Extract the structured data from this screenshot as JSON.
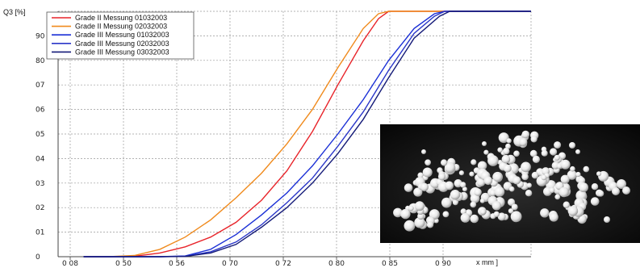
{
  "chart_data": {
    "type": "line",
    "ylabel": "Q3 [%]",
    "xlabel": "x mm ]",
    "ylim": [
      0,
      100
    ],
    "y_ticks": [
      "0",
      "10",
      "20",
      "30",
      "40",
      "50",
      "60",
      "70",
      "80",
      "90"
    ],
    "y_tick_labels": [
      "0",
      "01",
      "02",
      "03",
      "04",
      "05",
      "06",
      "07",
      "80",
      "90"
    ],
    "x_tick_labels": [
      "0 08",
      "0 50",
      "0 56",
      "0 70",
      "0 72",
      "0 80",
      "0 85",
      "0 90"
    ],
    "grid": true,
    "legend_position": "top-left",
    "series": [
      {
        "name": "Grade II Messung 01032003",
        "color": "#e8242a",
        "points": [
          [
            0.5,
            0
          ],
          [
            1.0,
            0
          ],
          [
            1.5,
            0.2
          ],
          [
            2.0,
            1.5
          ],
          [
            2.5,
            4
          ],
          [
            3.0,
            8
          ],
          [
            3.5,
            14
          ],
          [
            4.0,
            23
          ],
          [
            4.5,
            35
          ],
          [
            5.0,
            51
          ],
          [
            5.5,
            70
          ],
          [
            6.0,
            88
          ],
          [
            6.3,
            97
          ],
          [
            6.5,
            100
          ],
          [
            9.3,
            100
          ]
        ]
      },
      {
        "name": "Grade II Messung 02032003",
        "color": "#f08a1c",
        "points": [
          [
            0.5,
            0
          ],
          [
            1.0,
            0
          ],
          [
            1.5,
            0.5
          ],
          [
            2.0,
            3
          ],
          [
            2.5,
            8
          ],
          [
            3.0,
            15
          ],
          [
            3.5,
            24
          ],
          [
            4.0,
            34
          ],
          [
            4.5,
            46
          ],
          [
            5.0,
            60
          ],
          [
            5.5,
            77
          ],
          [
            6.0,
            93
          ],
          [
            6.3,
            99
          ],
          [
            6.5,
            100
          ],
          [
            9.3,
            100
          ]
        ]
      },
      {
        "name": "Grade III Messung 01032003",
        "color": "#1a2fd6",
        "points": [
          [
            0.5,
            0
          ],
          [
            2.0,
            0
          ],
          [
            2.5,
            0.3
          ],
          [
            3.0,
            3
          ],
          [
            3.5,
            9
          ],
          [
            4.0,
            17
          ],
          [
            4.5,
            26
          ],
          [
            5.0,
            37
          ],
          [
            5.5,
            50
          ],
          [
            6.0,
            64
          ],
          [
            6.5,
            80
          ],
          [
            7.0,
            93
          ],
          [
            7.4,
            99
          ],
          [
            7.6,
            100
          ],
          [
            9.3,
            100
          ]
        ]
      },
      {
        "name": "Grade III Messung 02032003",
        "color": "#2a36c8",
        "points": [
          [
            0.5,
            0
          ],
          [
            2.0,
            0
          ],
          [
            2.5,
            0.2
          ],
          [
            3.0,
            2
          ],
          [
            3.5,
            6
          ],
          [
            4.0,
            13
          ],
          [
            4.5,
            22
          ],
          [
            5.0,
            32
          ],
          [
            5.5,
            45
          ],
          [
            6.0,
            59
          ],
          [
            6.5,
            76
          ],
          [
            7.0,
            91
          ],
          [
            7.4,
            98
          ],
          [
            7.6,
            100
          ],
          [
            9.3,
            100
          ]
        ]
      },
      {
        "name": "Grade III Messung 03032003",
        "color": "#141a78",
        "points": [
          [
            0.5,
            0
          ],
          [
            2.0,
            0
          ],
          [
            2.5,
            0.1
          ],
          [
            3.0,
            1.5
          ],
          [
            3.5,
            5
          ],
          [
            4.0,
            12
          ],
          [
            4.5,
            20
          ],
          [
            5.0,
            30
          ],
          [
            5.5,
            42
          ],
          [
            6.0,
            56
          ],
          [
            6.5,
            73
          ],
          [
            7.0,
            89
          ],
          [
            7.5,
            98
          ],
          [
            7.7,
            100
          ],
          [
            9.3,
            100
          ]
        ]
      }
    ]
  }
}
